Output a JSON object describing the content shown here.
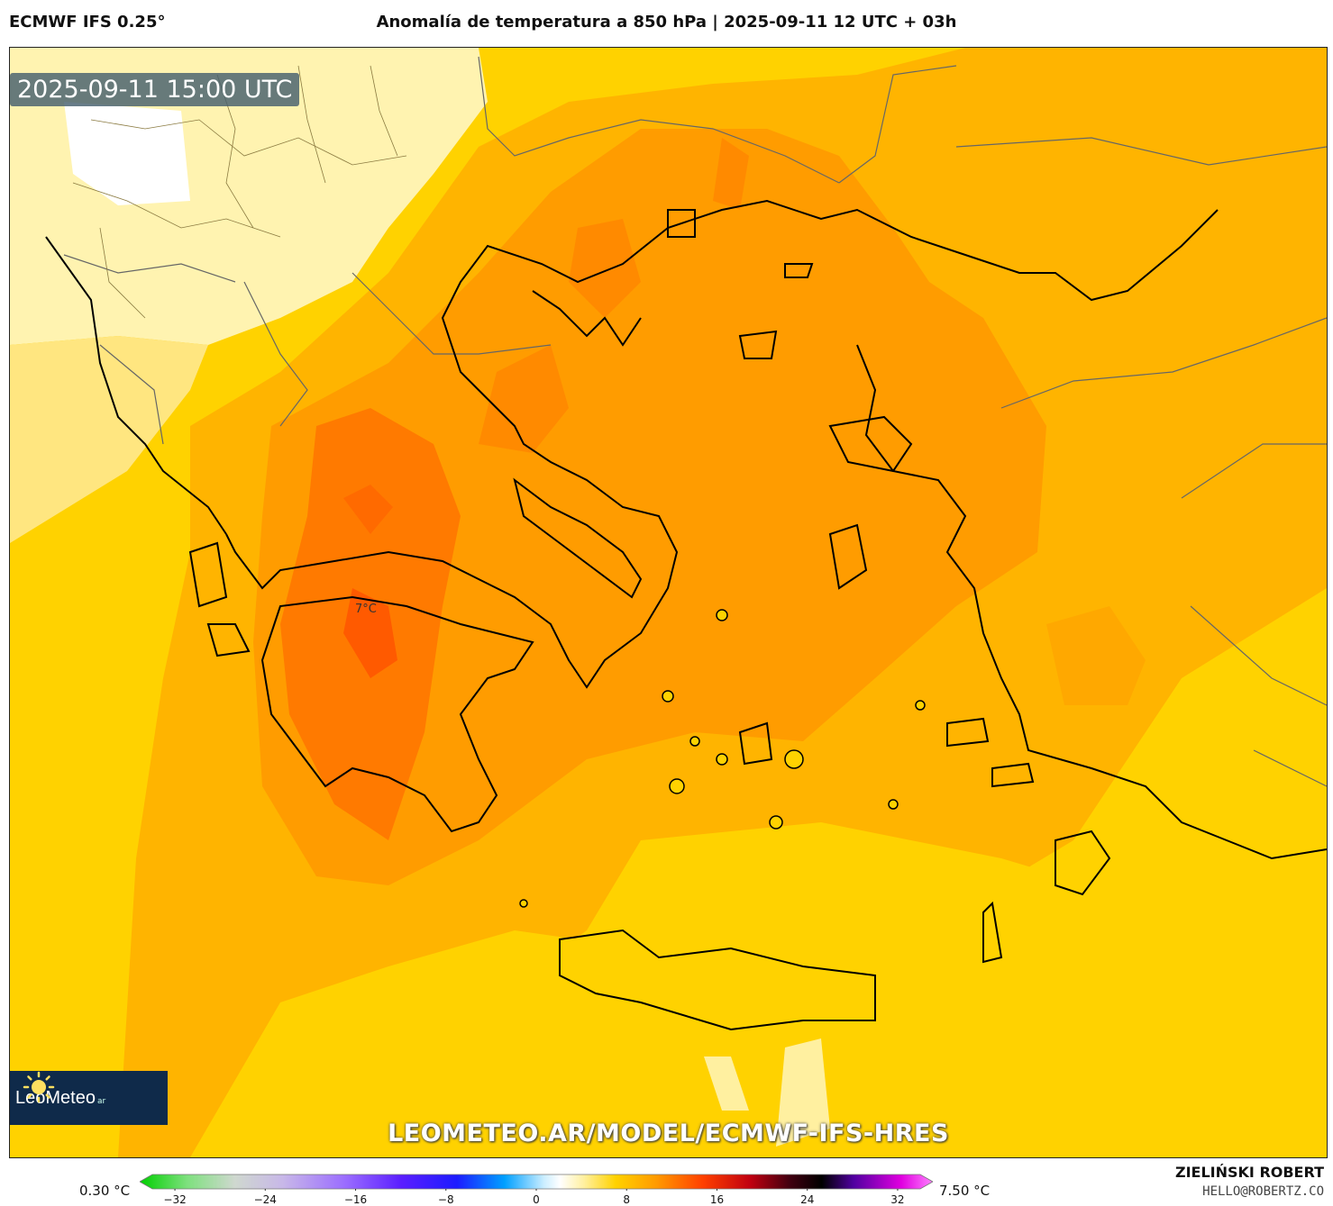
{
  "header": {
    "model": "ECMWF IFS 0.25°",
    "title": "Anomalía de temperatura a 850 hPa | 2025-09-11 12 UTC + 03h"
  },
  "map": {
    "timestamp": "2025-09-11 15:00 UTC",
    "point_label": "7°C",
    "logo_name": "LeoMeteo",
    "logo_suffix": "ar",
    "watermark_url": "LEOMETEO.AR/MODEL/ECMWF-IFS-HRES",
    "colors": {
      "pale": "#fff6c8",
      "light_yellow": "#ffe680",
      "yellow": "#ffd200",
      "amber": "#ffb400",
      "orange": "#ff9c00",
      "deep_orange": "#ff7a00",
      "red_orange": "#ff5a00",
      "coast": "#000000",
      "border": "#666666"
    }
  },
  "legend": {
    "min_label": "0.30 °C",
    "max_label": "7.50 °C",
    "ticks": [
      "−32",
      "−24",
      "−16",
      "−8",
      "0",
      "8",
      "16",
      "24",
      "32"
    ],
    "tick_values": [
      -32,
      -24,
      -16,
      -8,
      0,
      8,
      16,
      24,
      32
    ],
    "range": [
      -34,
      34
    ]
  },
  "footer": {
    "author": "ZIELIŃSKI ROBERT",
    "email": "HELLO@ROBERTZ.CO"
  }
}
